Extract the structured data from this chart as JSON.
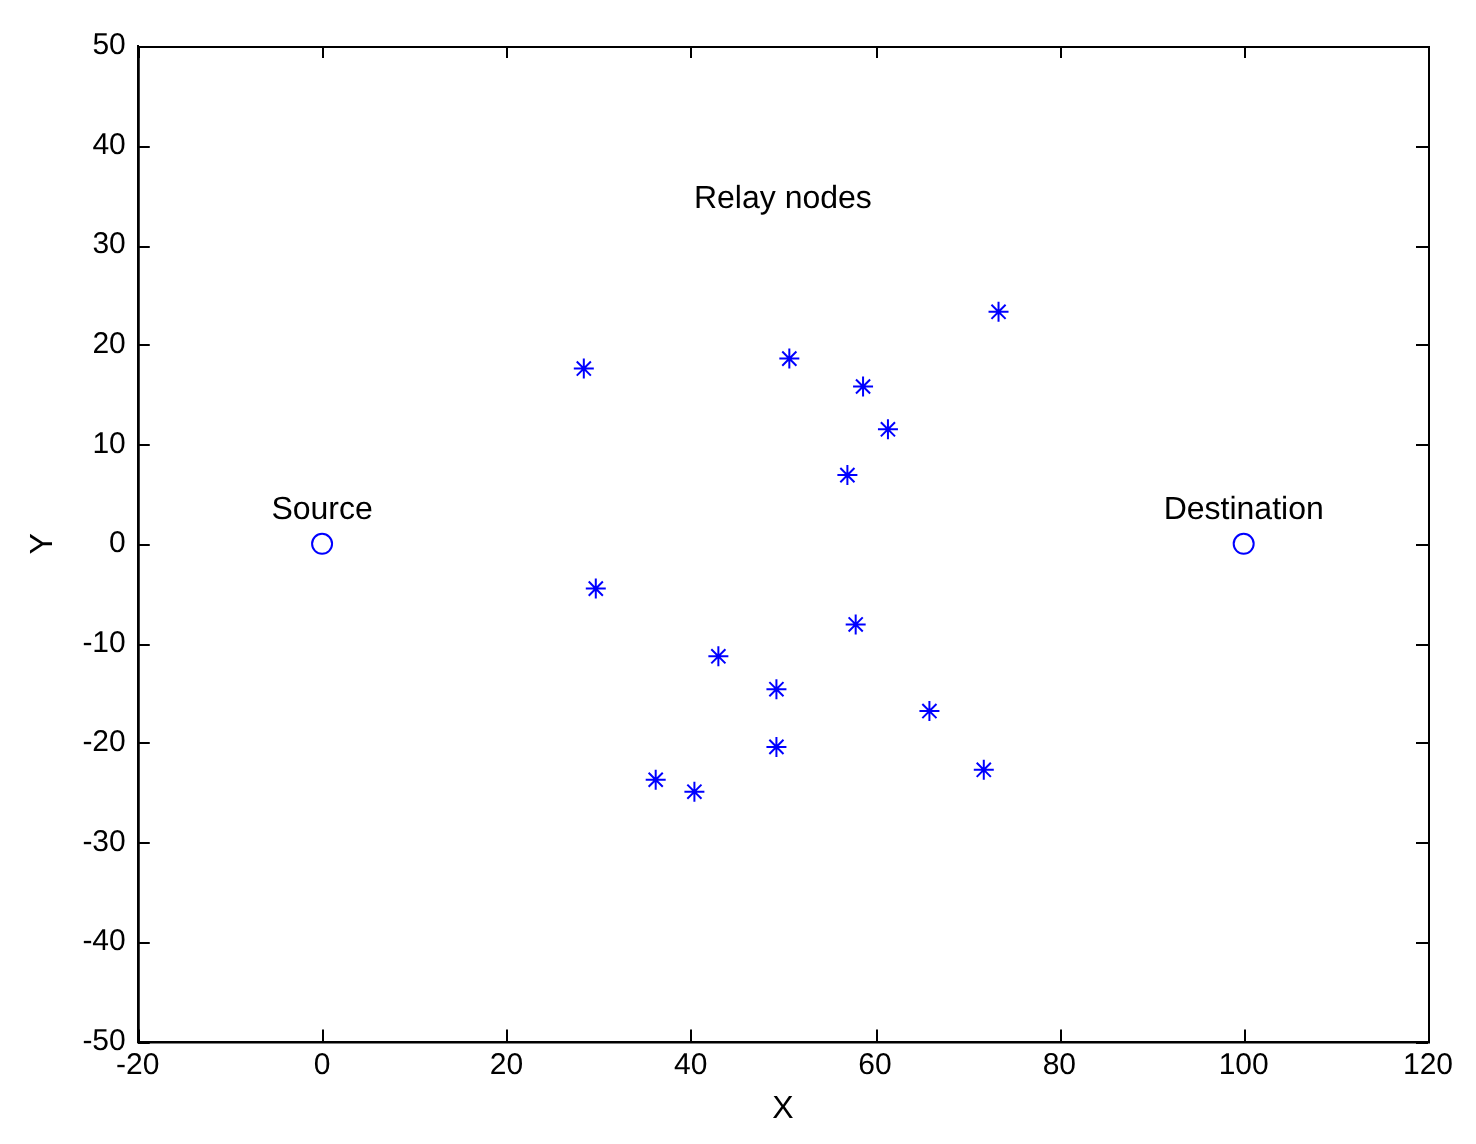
{
  "chart_data": {
    "type": "scatter",
    "xlabel": "X",
    "ylabel": "Y",
    "xlim": [
      -20,
      120
    ],
    "xticks": [
      -20,
      0,
      20,
      40,
      60,
      80,
      100,
      120
    ],
    "ylim": [
      -50,
      50
    ],
    "yticks": [
      -50,
      -40,
      -30,
      -20,
      -10,
      0,
      10,
      20,
      30,
      40,
      50
    ],
    "grid": false,
    "legend": false,
    "series": [
      {
        "color": "#0000ff",
        "marker": "cross",
        "x": [
          28.4,
          50.7,
          73.4,
          58.7,
          61.4,
          57.0,
          29.7,
          43.0,
          57.9,
          49.3,
          49.3,
          65.9,
          71.8,
          36.2,
          40.4
        ],
        "values": [
          17.6,
          18.6,
          23.3,
          15.8,
          11.5,
          6.9,
          -4.5,
          -11.3,
          -8.1,
          -14.6,
          -20.4,
          -16.8,
          -22.7,
          -23.7,
          -24.9
        ]
      },
      {
        "color": "#0000ff",
        "marker": "circle",
        "x": [
          0,
          100
        ],
        "values": [
          0,
          0
        ]
      }
    ],
    "annotations": [
      {
        "text": "Source",
        "x": 0,
        "y": 0
      },
      {
        "text": "Destination",
        "x": 100,
        "y": 0
      },
      "Relay nodes"
    ]
  }
}
